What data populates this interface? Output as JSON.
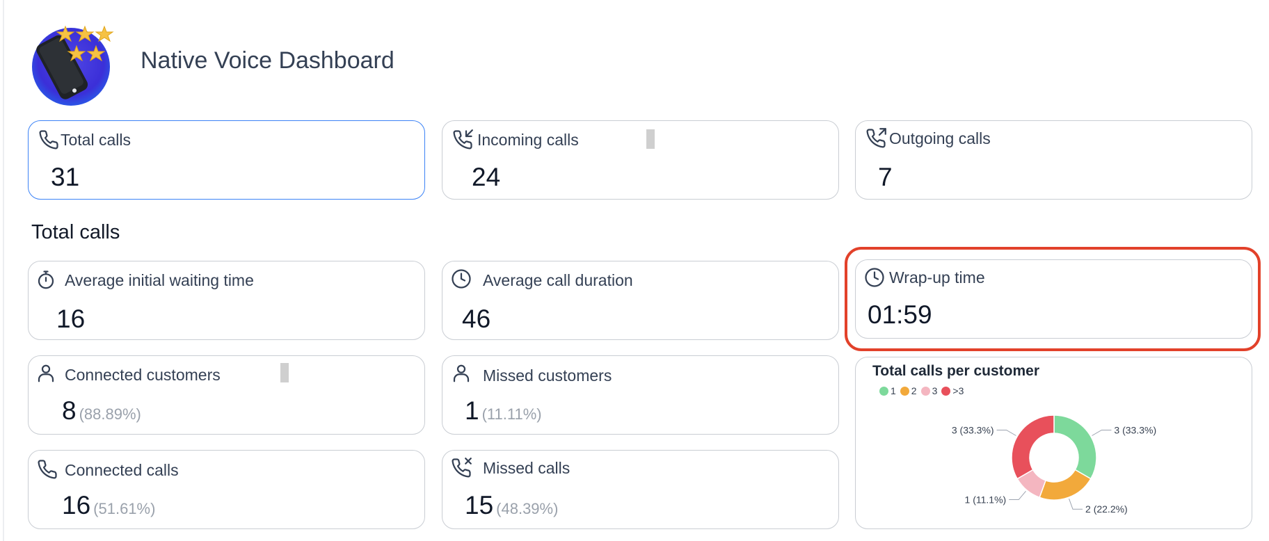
{
  "app": {
    "title": "Native Voice Dashboard"
  },
  "summary": [
    {
      "label": "Total calls",
      "value": "31",
      "icon": "phone-icon"
    },
    {
      "label": "Incoming calls",
      "value": "24",
      "icon": "incoming-call-icon"
    },
    {
      "label": "Outgoing calls",
      "value": "7",
      "icon": "outgoing-call-icon"
    }
  ],
  "section": {
    "title": "Total calls"
  },
  "metrics": {
    "avg_wait": {
      "label": "Average initial waiting time",
      "value": "16",
      "icon": "stopwatch-icon"
    },
    "avg_duration": {
      "label": "Average call duration",
      "value": "46",
      "icon": "clock-icon"
    },
    "wrap_up": {
      "label": "Wrap-up time",
      "value": "01:59",
      "icon": "clock-icon"
    },
    "connected_customers": {
      "label": "Connected customers",
      "value": "8",
      "pct": "(88.89%)",
      "icon": "person-icon"
    },
    "missed_customers": {
      "label": "Missed customers",
      "value": "1",
      "pct": "(11.11%)",
      "icon": "person-icon"
    },
    "connected_calls": {
      "label": "Connected calls",
      "value": "16",
      "pct": "(51.61%)",
      "icon": "phone-icon"
    },
    "missed_calls": {
      "label": "Missed calls",
      "value": "15",
      "pct": "(48.39%)",
      "icon": "missed-call-icon"
    }
  },
  "chart_data": {
    "type": "pie",
    "title": "Total calls per customer",
    "legend_position": "top-left",
    "categories": [
      "1",
      "2",
      "3",
      ">3"
    ],
    "values": [
      3,
      2,
      1,
      3
    ],
    "labels": [
      "3 (33.3%)",
      "2 (22.2%)",
      "1 (11.1%)",
      "3 (33.3%)"
    ],
    "colors": [
      "#7dd99b",
      "#f2a93b",
      "#f4b6c0",
      "#e8505b"
    ]
  }
}
